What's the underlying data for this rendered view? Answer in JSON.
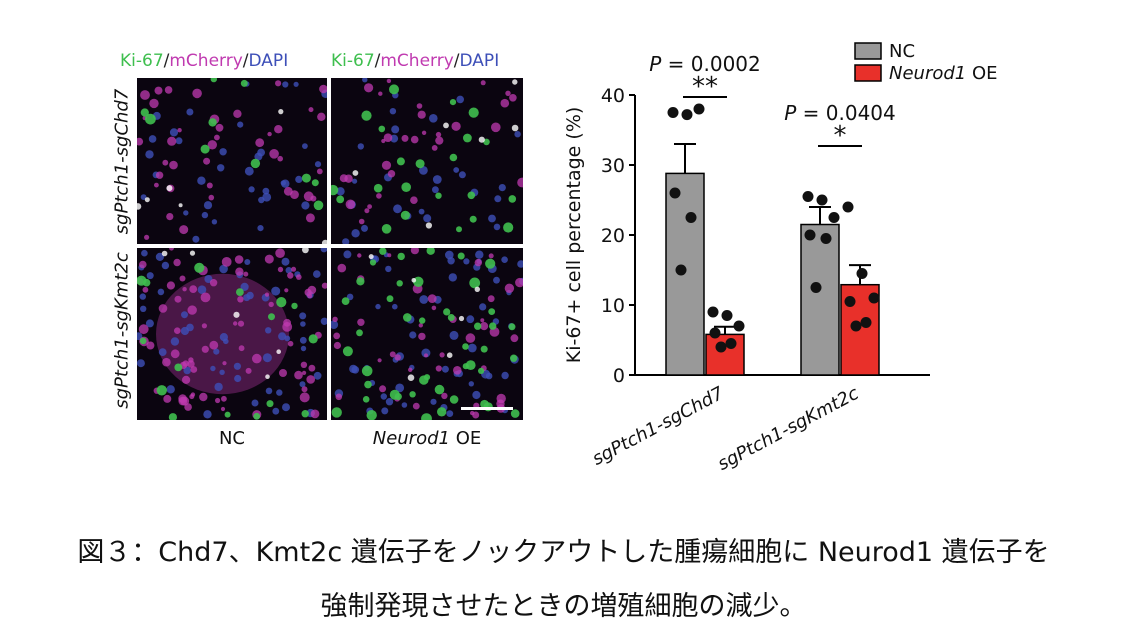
{
  "micrograph": {
    "channel_header": {
      "ki67": "Ki-67",
      "sep1": "/",
      "mcherry": "mCherry",
      "sep2": "/",
      "dapi": "DAPI"
    },
    "rows": [
      "sgPtch1-sgChd7",
      "sgPtch1-sgKmt2c"
    ],
    "columns": [
      {
        "label": "NC"
      },
      {
        "label_italic": "Neurod1",
        "label_rest": " OE"
      }
    ],
    "colors": {
      "ki67": "#3fbf4f",
      "mcherry": "#c03ab0",
      "dapi": "#3d4fb8"
    }
  },
  "chart_data": {
    "type": "bar",
    "ylabel": "Ki-67+ cell percentage (%)",
    "ylim": [
      0,
      40
    ],
    "yticks": [
      0,
      10,
      20,
      30,
      40
    ],
    "categories": [
      "sgPtch1-sgChd7",
      "sgPtch1-sgKmt2c"
    ],
    "series": [
      {
        "name": "NC",
        "color": "#999999",
        "values": [
          28.8,
          21.5
        ],
        "sem": [
          4.2,
          2.5
        ],
        "points": [
          [
            37.5,
            37.2,
            38.0,
            26.0,
            22.5,
            15.0
          ],
          [
            25.5,
            25.0,
            22.5,
            20.0,
            19.5,
            12.5
          ]
        ]
      },
      {
        "name_italic": "Neurod1",
        "name_rest": " OE",
        "color": "#e8302a",
        "values": [
          5.8,
          12.9
        ],
        "sem": [
          1.1,
          2.8
        ],
        "points": [
          [
            9.0,
            8.5,
            7.0,
            6.0,
            4.5,
            4.0
          ],
          [
            24.0,
            14.5,
            11.0,
            10.5,
            7.5,
            7.0
          ]
        ]
      }
    ],
    "comparisons": [
      {
        "p_prefix": "P",
        "p_text": " = 0.0002",
        "stars": "**"
      },
      {
        "p_prefix": "P",
        "p_text": " = 0.0404",
        "stars": "*"
      }
    ]
  },
  "caption": {
    "line1": "図３：Chd7、Kmt2c 遺伝子をノックアウトした腫瘍細胞に Neurod1 遺伝子を",
    "line2": "強制発現させたときの増殖細胞の減少。"
  }
}
